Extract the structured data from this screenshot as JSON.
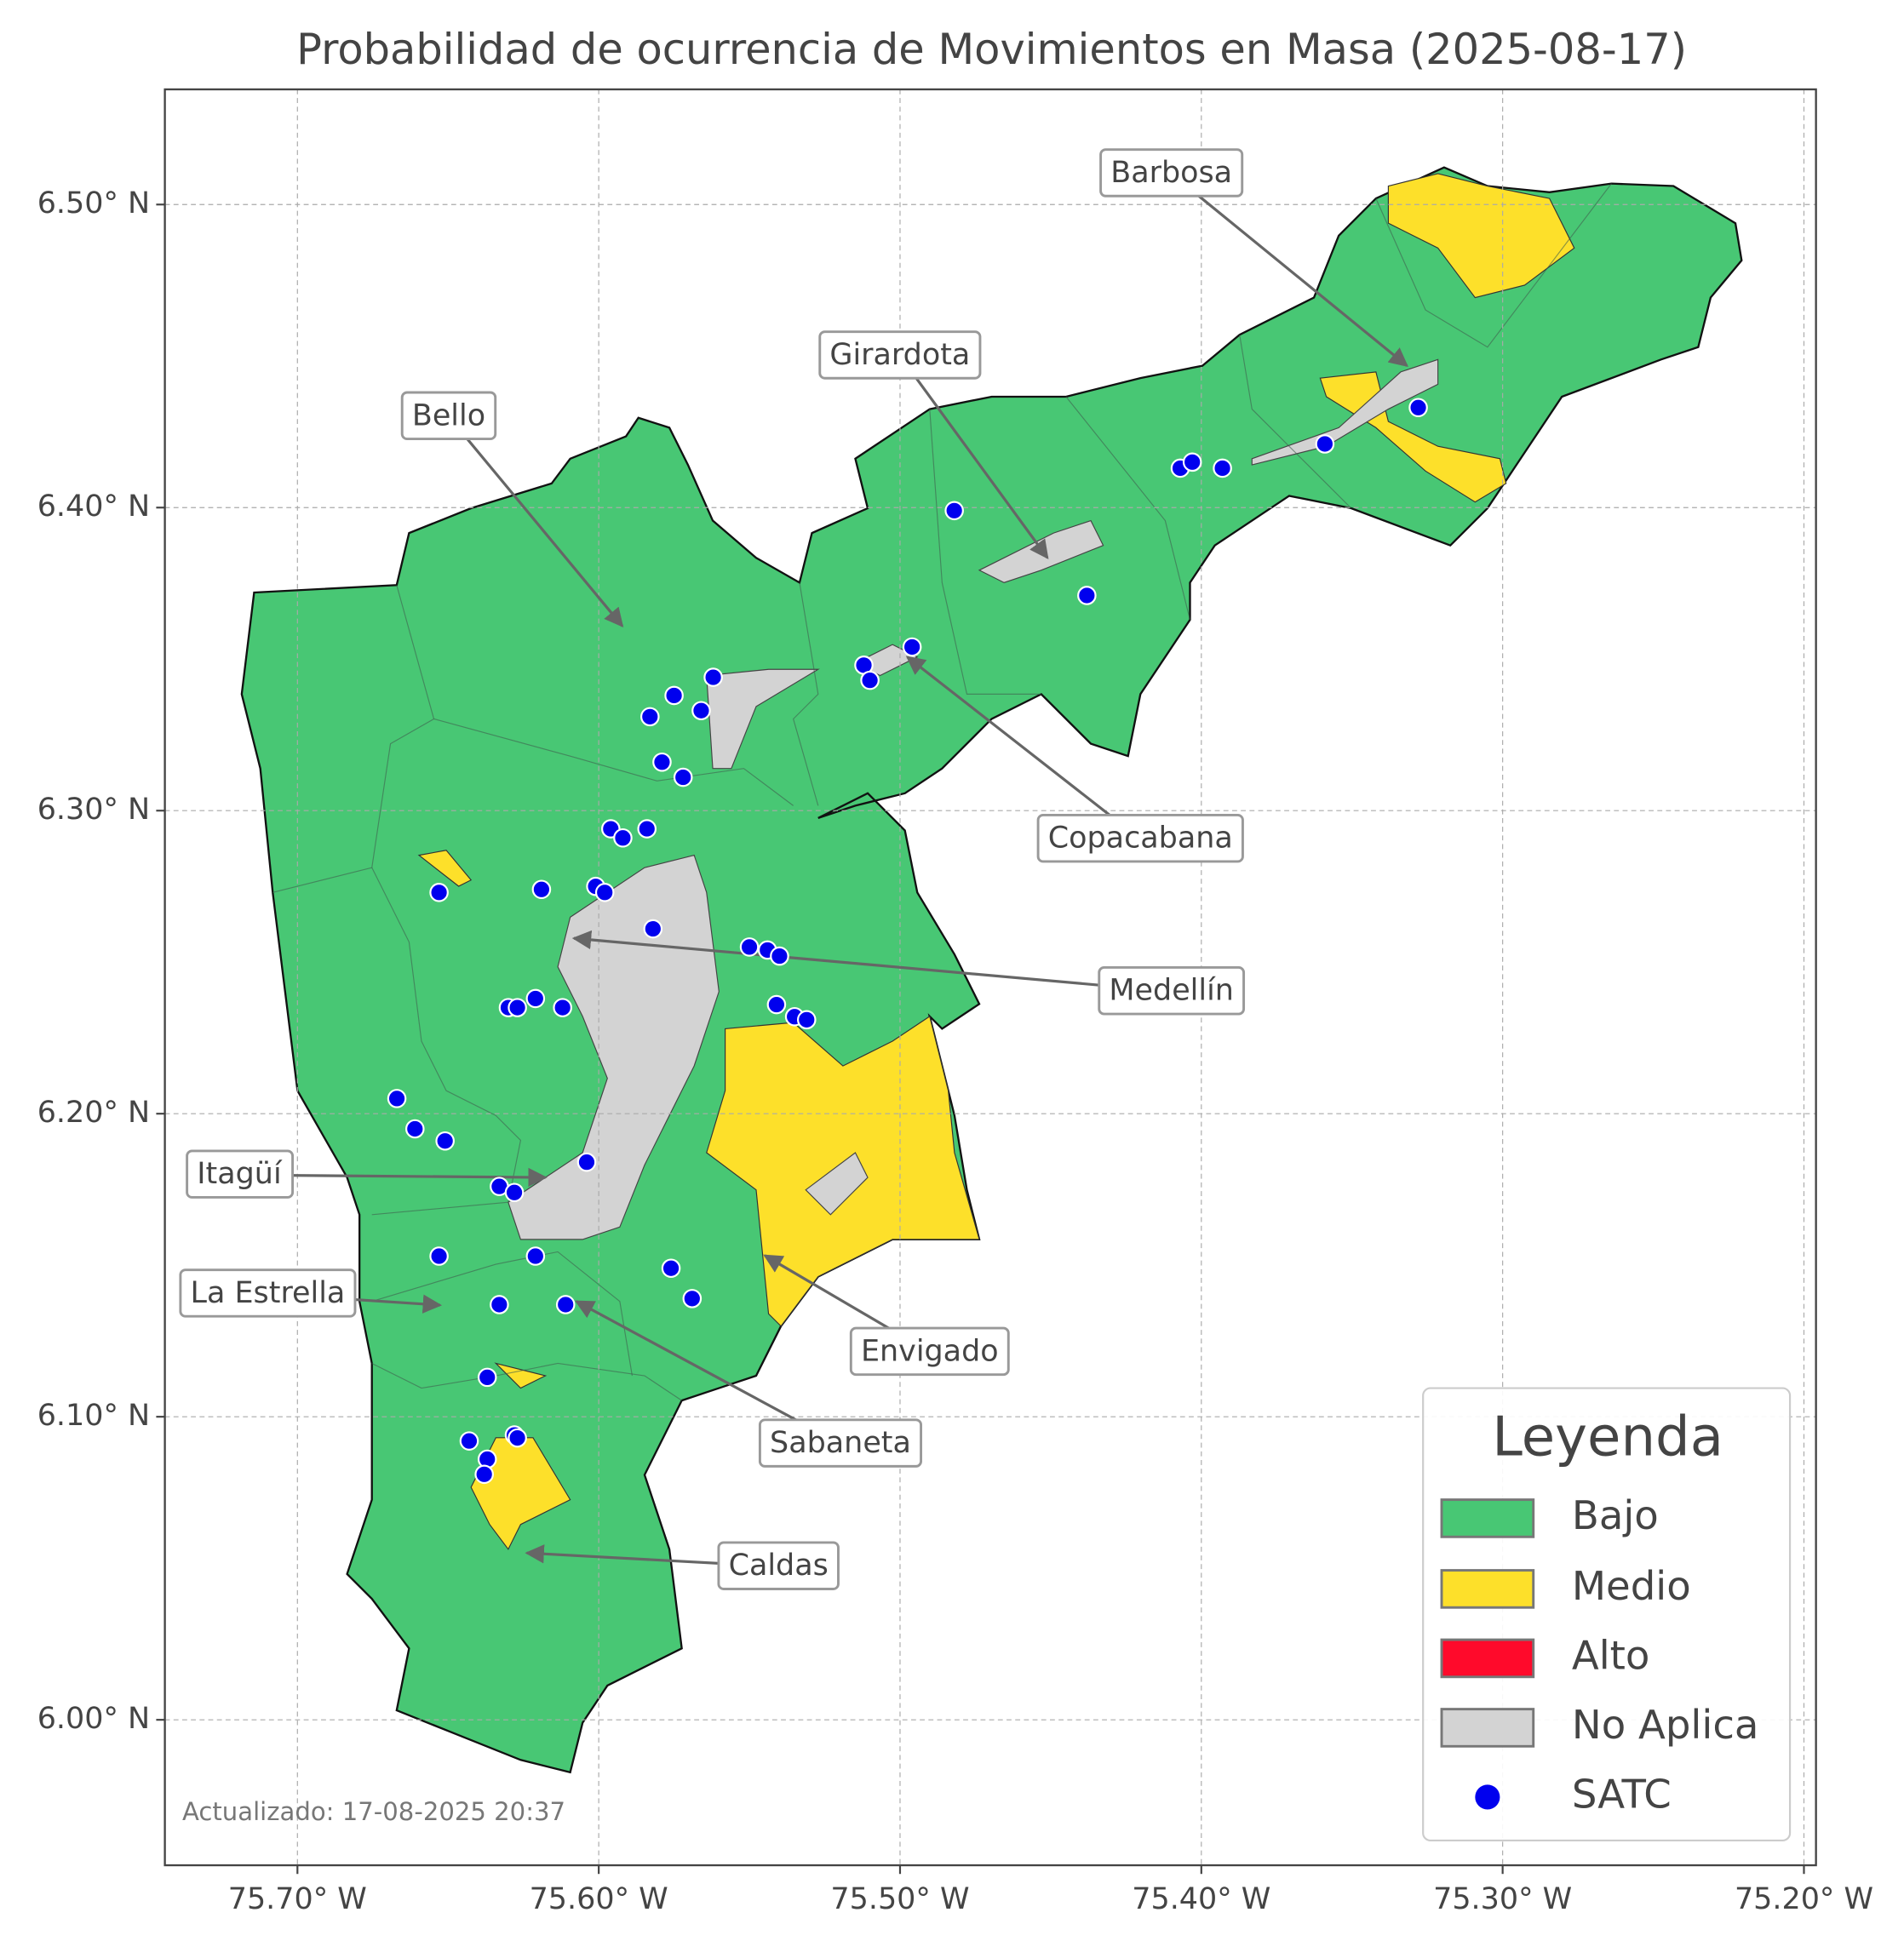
{
  "chart_data": {
    "type": "map",
    "title": "Probabilidad de ocurrencia de Movimientos en Masa (2025-08-17)",
    "xlim": [
      -75.744,
      -75.196
    ],
    "ylim": [
      5.952,
      6.538
    ],
    "xticks": [
      {
        "value": -75.7,
        "label": "75.70° W"
      },
      {
        "value": -75.6,
        "label": "75.60° W"
      },
      {
        "value": -75.5,
        "label": "75.50° W"
      },
      {
        "value": -75.4,
        "label": "75.40° W"
      },
      {
        "value": -75.3,
        "label": "75.30° W"
      },
      {
        "value": -75.2,
        "label": "75.20° W"
      }
    ],
    "yticks": [
      {
        "value": 6.0,
        "label": "6.00° N"
      },
      {
        "value": 6.1,
        "label": "6.10° N"
      },
      {
        "value": 6.2,
        "label": "6.20° N"
      },
      {
        "value": 6.3,
        "label": "6.30° N"
      },
      {
        "value": 6.4,
        "label": "6.40° N"
      },
      {
        "value": 6.5,
        "label": "6.50° N"
      }
    ],
    "grid": true,
    "classes": [
      {
        "name": "Bajo",
        "color": "#48c774"
      },
      {
        "name": "Medio",
        "color": "#fde02a"
      },
      {
        "name": "Alto",
        "color": "#ff0a2b"
      },
      {
        "name": "No Aplica",
        "color": "#d3d3d3"
      }
    ],
    "series": [
      {
        "name": "SATC",
        "color": "#0000ee",
        "x": [
          -75.328,
          -75.359,
          -75.407,
          -75.403,
          -75.393,
          -75.482,
          -75.438,
          -75.496,
          -75.512,
          -75.51,
          -75.562,
          -75.575,
          -75.583,
          -75.566,
          -75.579,
          -75.572,
          -75.596,
          -75.592,
          -75.584,
          -75.653,
          -75.619,
          -75.601,
          -75.598,
          -75.582,
          -75.55,
          -75.544,
          -75.54,
          -75.63,
          -75.627,
          -75.621,
          -75.612,
          -75.541,
          -75.535,
          -75.531,
          -75.667,
          -75.661,
          -75.651,
          -75.604,
          -75.633,
          -75.628,
          -75.653,
          -75.621,
          -75.576,
          -75.569,
          -75.633,
          -75.611,
          -75.637,
          -75.643,
          -75.628,
          -75.627,
          -75.637,
          -75.638
        ],
        "y": [
          6.433,
          6.421,
          6.413,
          6.415,
          6.413,
          6.399,
          6.371,
          6.354,
          6.348,
          6.343,
          6.344,
          6.338,
          6.331,
          6.333,
          6.316,
          6.311,
          6.294,
          6.291,
          6.294,
          6.273,
          6.274,
          6.275,
          6.273,
          6.261,
          6.255,
          6.254,
          6.252,
          6.235,
          6.235,
          6.238,
          6.235,
          6.236,
          6.232,
          6.231,
          6.205,
          6.195,
          6.191,
          6.184,
          6.176,
          6.174,
          6.153,
          6.153,
          6.149,
          6.139,
          6.137,
          6.137,
          6.113,
          6.092,
          6.094,
          6.093,
          6.086,
          6.081
        ]
      }
    ],
    "legend_title": "Leyenda",
    "annotations": [
      "Barbosa",
      "Girardota",
      "Bello",
      "Copacabana",
      "Medellín",
      "Itagüí",
      "La Estrella",
      "Envigado",
      "Sabaneta",
      "Caldas"
    ],
    "footnote": "Actualizado: 17-08-2025 20:37"
  }
}
